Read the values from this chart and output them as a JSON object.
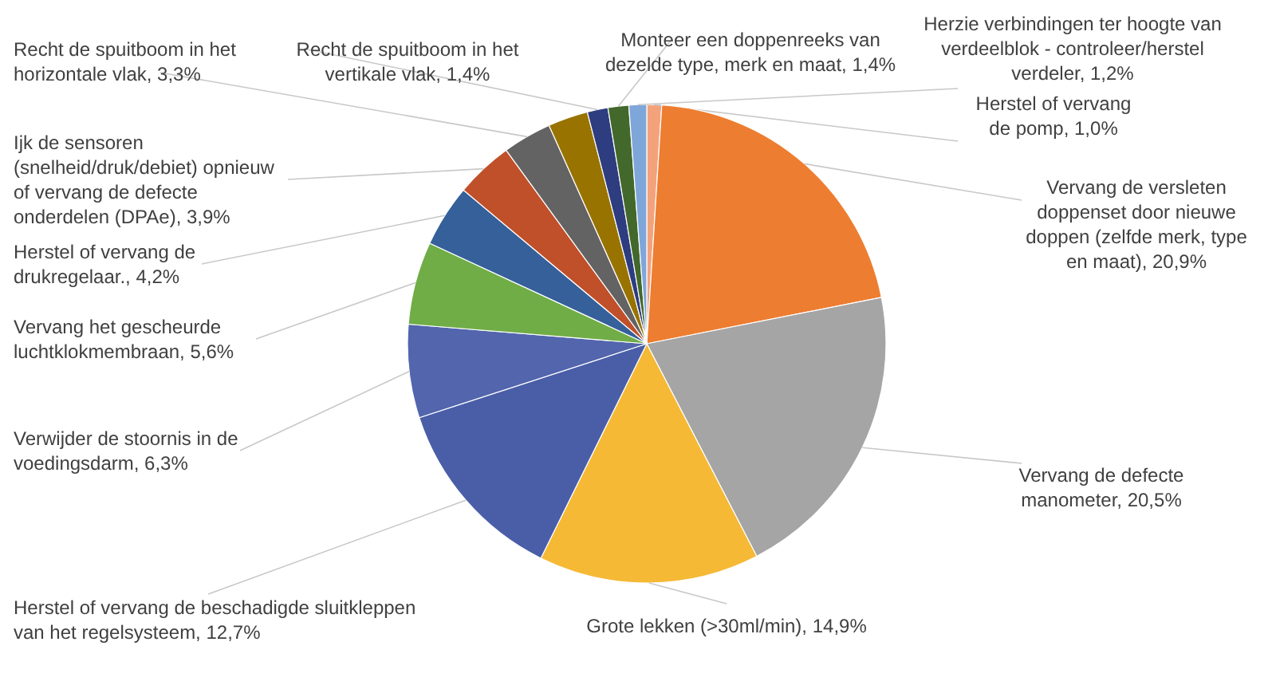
{
  "chart_data": {
    "type": "pie",
    "categories": [
      "Herstel of vervang de pomp",
      "Vervang de versleten doppenset door nieuwe doppen (zelfde merk, type en maat)",
      "Vervang de defecte manometer",
      "Grote lekken (>30ml/min)",
      "Herstel of vervang de beschadigde sluitkleppen van het regelsysteem",
      "Verwijder de stoornis in de voedingsdarm",
      "Vervang het gescheurde luchtklokmembraan",
      "Herstel of vervang de drukregelaar.",
      "Ijk de sensoren (snelheid/druk/debiet) opnieuw of vervang de defecte onderdelen (DPAe)",
      "Recht de spuitboom in het horizontale vlak",
      null,
      "Recht de spuitboom in het vertikale vlak",
      "Monteer een doppenreeks van dezelde type, merk en maat",
      "Herzie verbindingen ter hoogte van verdeelblok - controleer/herstel verdeler"
    ],
    "values": [
      1.0,
      20.9,
      20.5,
      14.9,
      12.7,
      6.3,
      5.6,
      4.2,
      3.9,
      3.3,
      2.7,
      1.4,
      1.4,
      1.2
    ],
    "value_labels": [
      "1,0%",
      "20,9%",
      "20,5%",
      "14,9%",
      "12,7%",
      "6,3%",
      "5,6%",
      "4,2%",
      "3,9%",
      "3,3%",
      null,
      "1,4%",
      "1,4%",
      "1,2%"
    ],
    "colors": [
      "#f4a27c",
      "#ed7d31",
      "#a5a5a5",
      "#f5b935",
      "#4a5ea8",
      "#5265ad",
      "#70ad47",
      "#35609a",
      "#c0502a",
      "#636363",
      "#997300",
      "#2e3d80",
      "#43682b",
      "#7fa6d9"
    ]
  }
}
